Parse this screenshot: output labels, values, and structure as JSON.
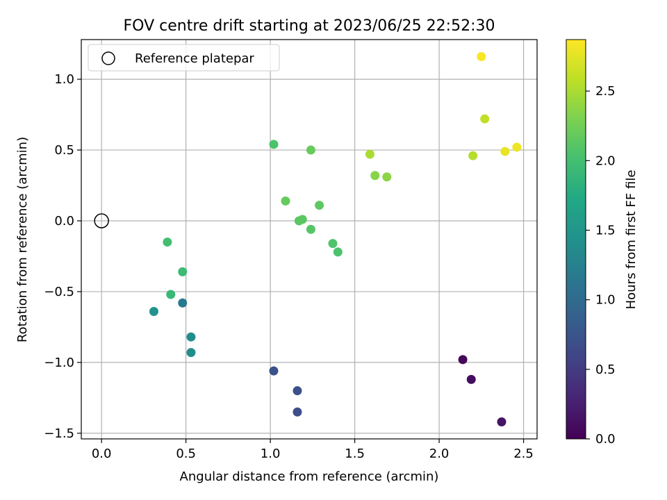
{
  "chart_data": {
    "type": "scatter",
    "title": "FOV centre drift starting at 2023/06/25 22:52:30",
    "xlabel": "Angular distance from reference (arcmin)",
    "ylabel": "Rotation from reference (arcmin)",
    "xlim": [
      -0.12,
      2.58
    ],
    "ylim": [
      -1.54,
      1.28
    ],
    "xticks": [
      0.0,
      0.5,
      1.0,
      1.5,
      2.0,
      2.5
    ],
    "xtick_labels": [
      "0.0",
      "0.5",
      "1.0",
      "1.5",
      "2.0",
      "2.5"
    ],
    "yticks": [
      -1.5,
      -1.0,
      -0.5,
      0.0,
      0.5,
      1.0
    ],
    "ytick_labels": [
      "−1.5",
      "−1.0",
      "−0.5",
      "0.0",
      "0.5",
      "1.0"
    ],
    "grid": true,
    "legend": {
      "placement": "top-left",
      "entries": [
        {
          "label": "Reference platepar",
          "marker": "open-circle",
          "color": "#000000"
        }
      ]
    },
    "reference_point": {
      "x": 0.0,
      "y": 0.0
    },
    "colorbar": {
      "label": "Hours from first FF file",
      "colormap": "viridis",
      "range": [
        0.0,
        2.87
      ],
      "ticks": [
        0.0,
        0.5,
        1.0,
        1.5,
        2.0,
        2.5
      ],
      "tick_labels": [
        "0.0",
        "0.5",
        "1.0",
        "1.5",
        "2.0",
        "2.5"
      ]
    },
    "points": [
      {
        "x": 2.14,
        "y": -0.98,
        "hours": 0.05
      },
      {
        "x": 2.19,
        "y": -1.12,
        "hours": 0.1
      },
      {
        "x": 2.37,
        "y": -1.42,
        "hours": 0.15
      },
      {
        "x": 1.16,
        "y": -1.35,
        "hours": 0.68
      },
      {
        "x": 1.16,
        "y": -1.2,
        "hours": 0.7
      },
      {
        "x": 1.02,
        "y": -1.06,
        "hours": 0.72
      },
      {
        "x": 0.48,
        "y": -0.58,
        "hours": 1.15
      },
      {
        "x": 0.53,
        "y": -0.82,
        "hours": 1.38
      },
      {
        "x": 0.53,
        "y": -0.93,
        "hours": 1.4
      },
      {
        "x": 0.31,
        "y": -0.64,
        "hours": 1.45
      },
      {
        "x": 0.41,
        "y": -0.52,
        "hours": 1.92
      },
      {
        "x": 0.48,
        "y": -0.36,
        "hours": 1.95
      },
      {
        "x": 0.39,
        "y": -0.15,
        "hours": 2.0
      },
      {
        "x": 1.4,
        "y": -0.22,
        "hours": 2.05
      },
      {
        "x": 1.37,
        "y": -0.16,
        "hours": 2.07
      },
      {
        "x": 1.24,
        "y": -0.06,
        "hours": 2.1
      },
      {
        "x": 1.17,
        "y": 0.0,
        "hours": 2.12
      },
      {
        "x": 1.19,
        "y": 0.01,
        "hours": 2.13
      },
      {
        "x": 1.29,
        "y": 0.11,
        "hours": 2.15
      },
      {
        "x": 1.09,
        "y": 0.14,
        "hours": 2.18
      },
      {
        "x": 1.02,
        "y": 0.54,
        "hours": 2.05
      },
      {
        "x": 1.24,
        "y": 0.5,
        "hours": 2.2
      },
      {
        "x": 1.62,
        "y": 0.32,
        "hours": 2.35
      },
      {
        "x": 1.69,
        "y": 0.31,
        "hours": 2.37
      },
      {
        "x": 1.59,
        "y": 0.47,
        "hours": 2.5
      },
      {
        "x": 2.2,
        "y": 0.46,
        "hours": 2.55
      },
      {
        "x": 2.27,
        "y": 0.72,
        "hours": 2.6
      },
      {
        "x": 2.39,
        "y": 0.49,
        "hours": 2.78
      },
      {
        "x": 2.46,
        "y": 0.52,
        "hours": 2.8
      },
      {
        "x": 2.25,
        "y": 1.16,
        "hours": 2.85
      }
    ]
  }
}
